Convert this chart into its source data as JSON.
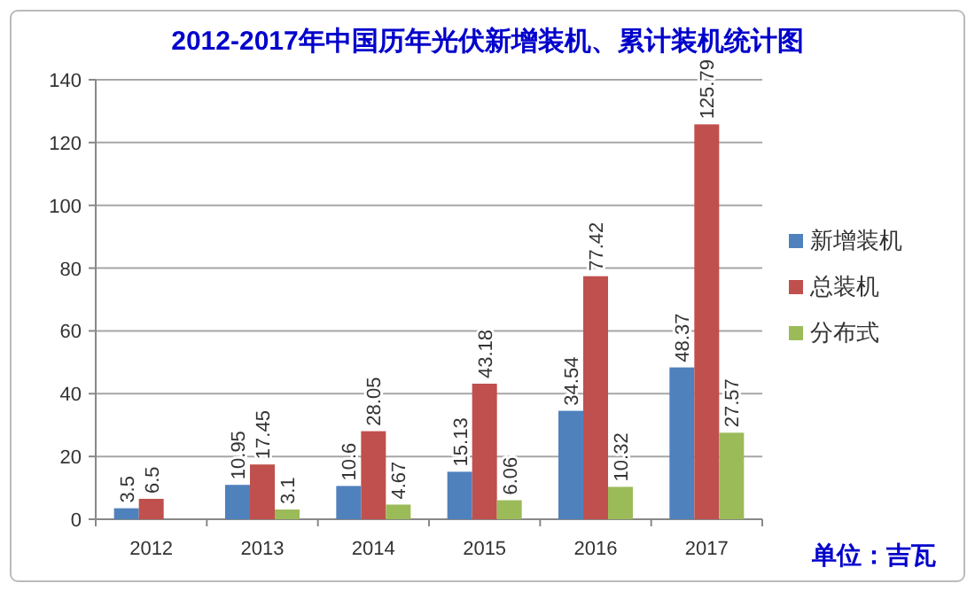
{
  "chart_data": {
    "type": "bar",
    "title": "2012-2017年中国历年光伏新增装机、累计装机统计图",
    "categories": [
      "2012",
      "2013",
      "2014",
      "2015",
      "2016",
      "2017"
    ],
    "series": [
      {
        "name": "新增装机",
        "color": "#4f81bd",
        "values": [
          3.5,
          10.95,
          10.6,
          15.13,
          34.54,
          48.37
        ]
      },
      {
        "name": "总装机",
        "color": "#c0504d",
        "values": [
          6.5,
          17.45,
          28.05,
          43.18,
          77.42,
          125.79
        ]
      },
      {
        "name": "分布式",
        "color": "#9bbb59",
        "values": [
          null,
          3.1,
          4.67,
          6.06,
          10.32,
          27.57
        ]
      }
    ],
    "ylim": [
      0,
      140
    ],
    "yticks": [
      0,
      20,
      40,
      60,
      80,
      100,
      120,
      140
    ],
    "grid": "y",
    "legend": "right",
    "data_labels": true,
    "annotations": [
      "单位：吉瓦"
    ]
  }
}
